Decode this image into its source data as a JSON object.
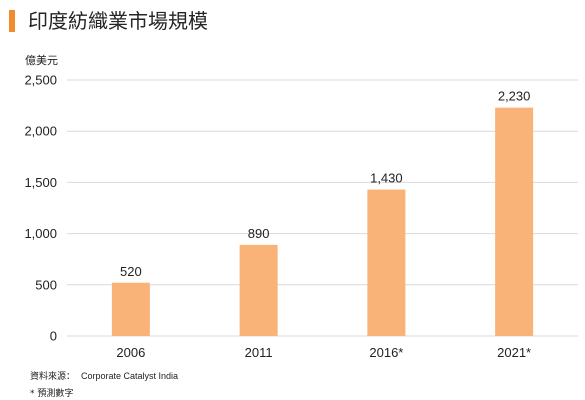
{
  "title": "印度紡織業市場規模",
  "colors": {
    "accent": "#f28b2e",
    "bar": "#f9b277",
    "grid": "#d9d9d9"
  },
  "chart_data": {
    "type": "bar",
    "title": "印度紡織業市場規模",
    "unit_label": "億美元",
    "categories": [
      "2006",
      "2011",
      "2016*",
      "2021*"
    ],
    "values": [
      520,
      890,
      1430,
      2230
    ],
    "value_labels": [
      "520",
      "890",
      "1,430",
      "2,230"
    ],
    "ylim": [
      0,
      2500
    ],
    "y_ticks": [
      0,
      500,
      1000,
      1500,
      2000,
      2500
    ],
    "y_tick_labels": [
      "0",
      "500",
      "1,000",
      "1,500",
      "2,000",
      "2,500"
    ],
    "grid": true,
    "legend": "none"
  },
  "footer": {
    "source_label": "資料來源：",
    "source_text": "Corporate Catalyst India",
    "note": "* 預測數字"
  }
}
